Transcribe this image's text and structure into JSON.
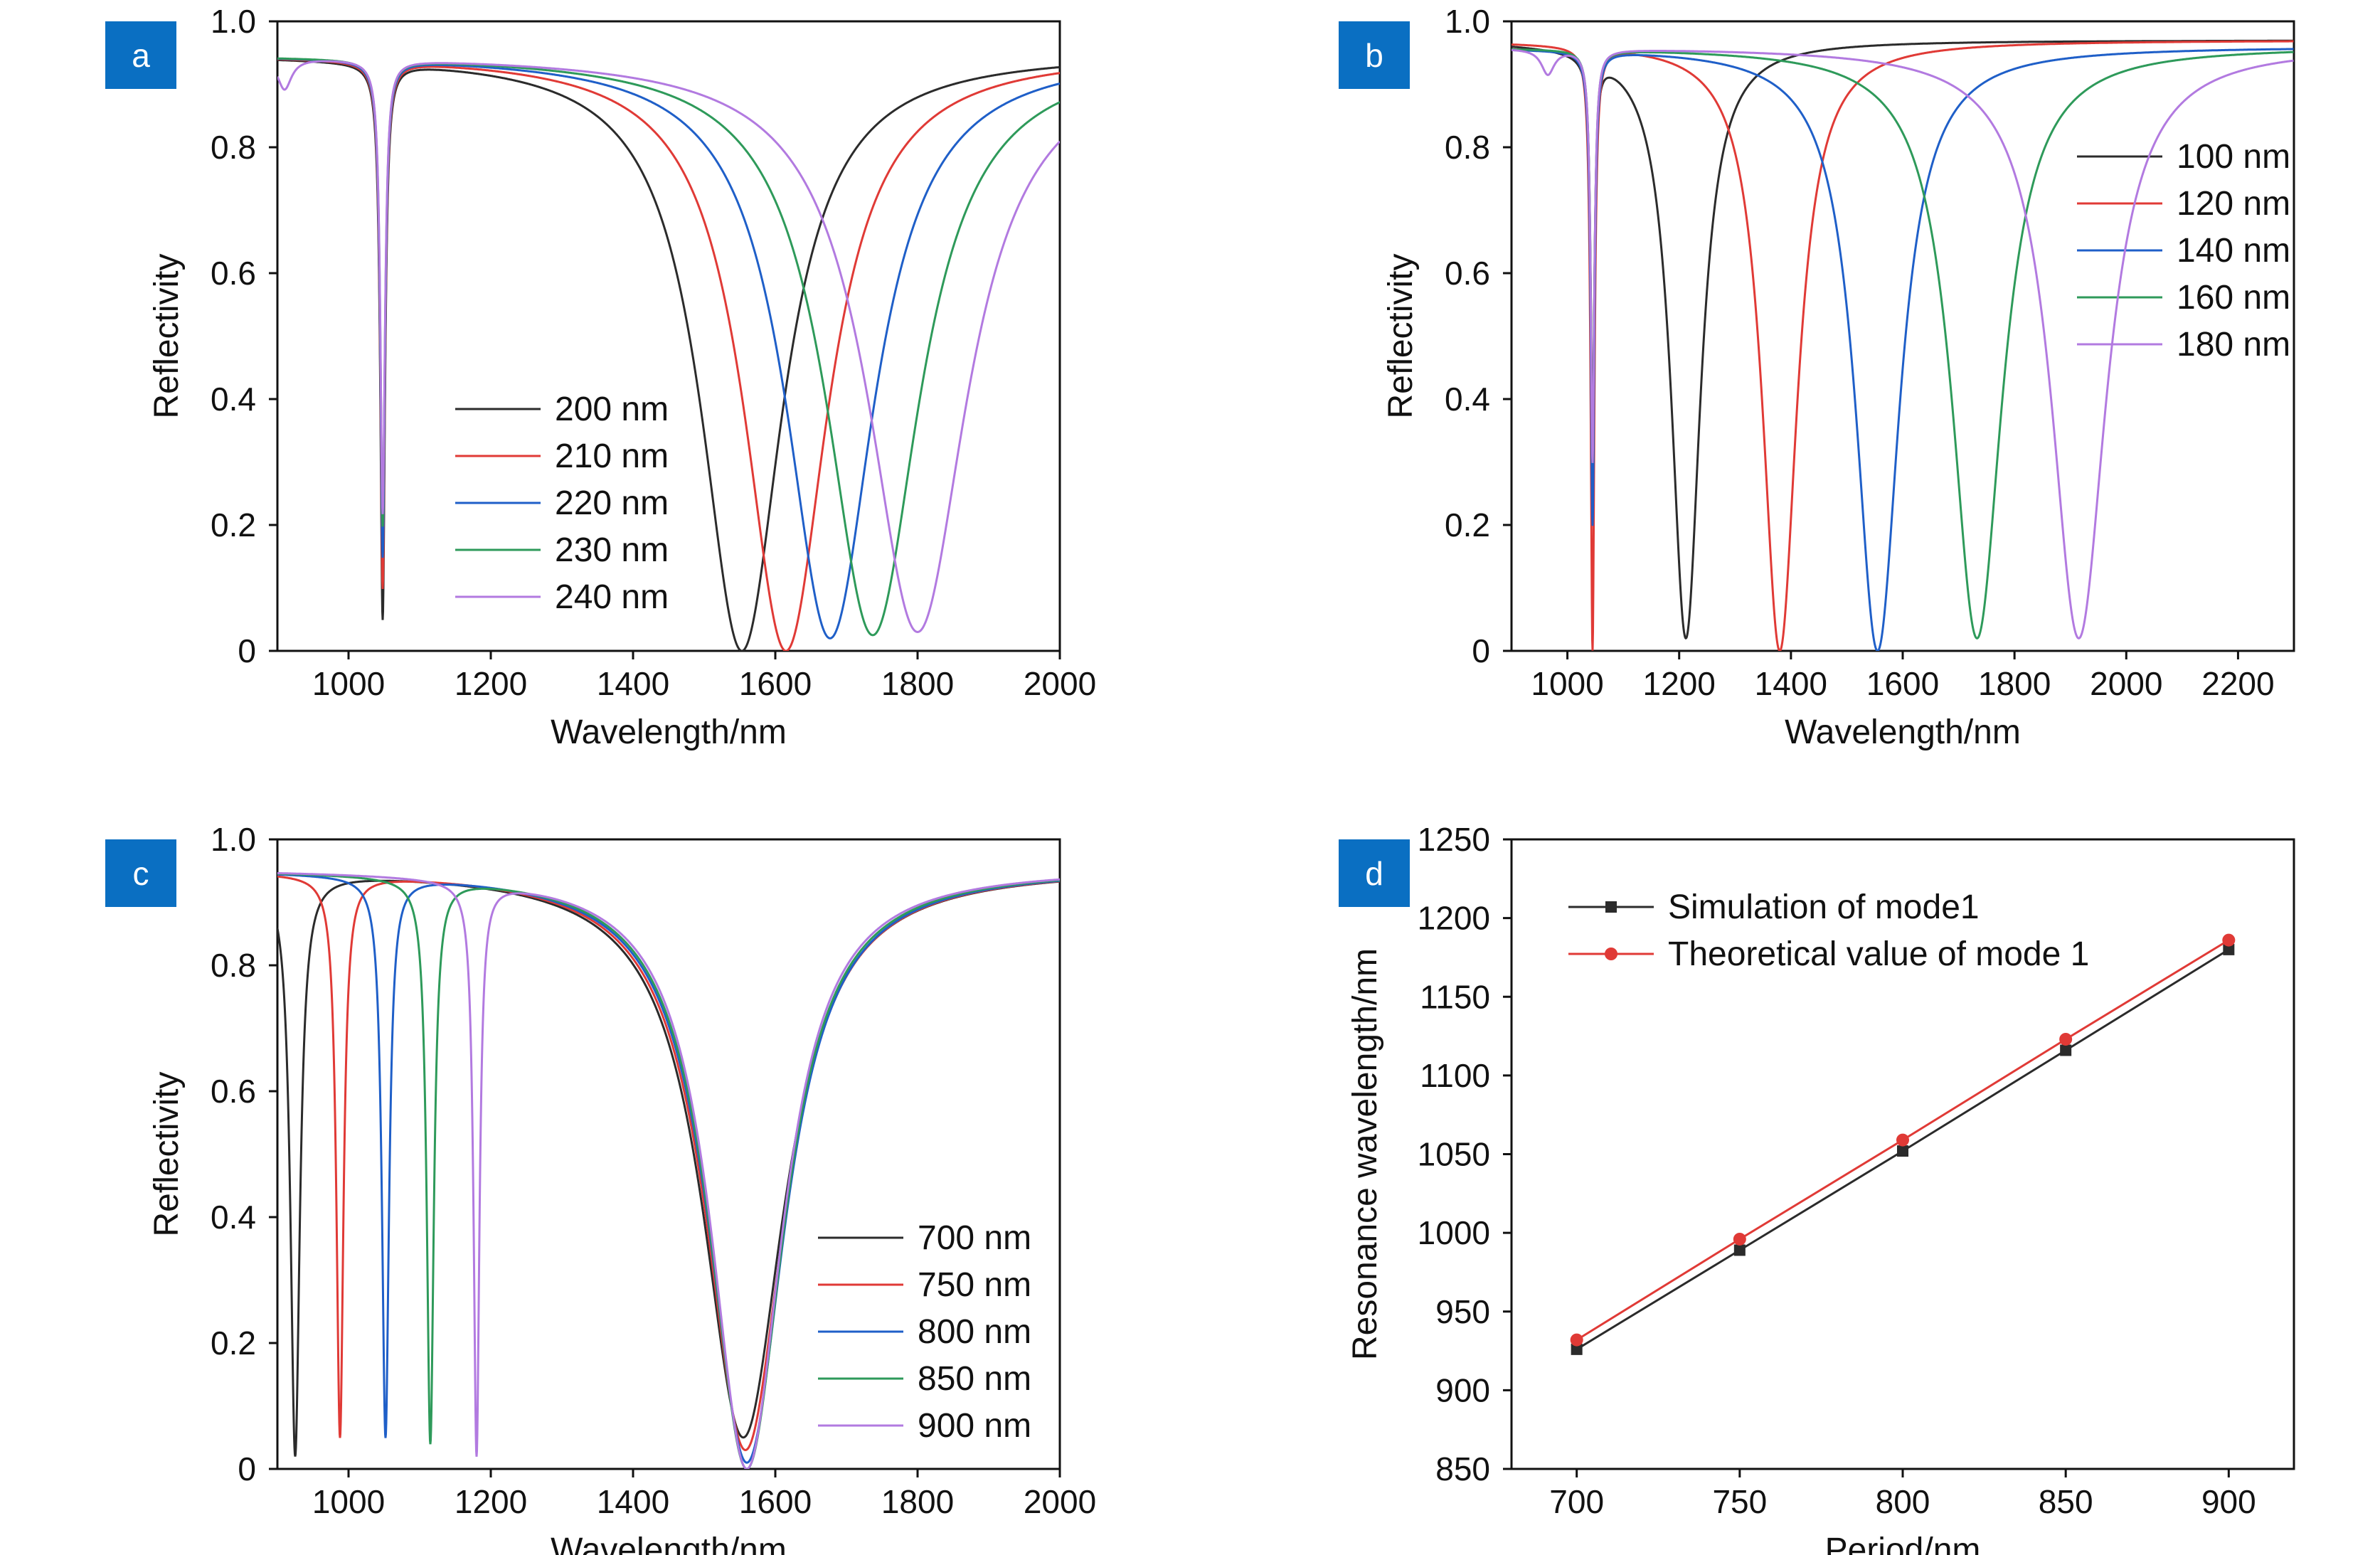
{
  "colors": {
    "black": "#2b2b2b",
    "red": "#e03a36",
    "blue": "#1f5fc8",
    "green": "#2e9a5a",
    "purple": "#b27ae0",
    "badge": "#0a6fc2"
  },
  "chart_data": [
    {
      "badge": "a",
      "type": "line",
      "xlabel": "Wavelength/nm",
      "ylabel": "Reflectivity",
      "xlim": [
        900,
        2000
      ],
      "ylim": [
        0,
        1.0
      ],
      "xticks": [
        1000,
        1200,
        1400,
        1600,
        1800,
        2000
      ],
      "xtick_labels": [
        "1000",
        "1200",
        "1400",
        "1600",
        "1800",
        "2000"
      ],
      "yticks": [
        0,
        0.2,
        0.4,
        0.6,
        0.8,
        1.0
      ],
      "ytick_labels": [
        "0",
        "0.2",
        "0.4",
        "0.6",
        "0.8",
        "1.0"
      ],
      "legend_position": "center",
      "series": [
        {
          "name": "200 nm",
          "color": "black",
          "baseline": 0.95,
          "dips": [
            {
              "x0": 1048,
              "w": 4,
              "min": 0.05
            },
            {
              "x0": 1553,
              "w": 70,
              "min": 0.0
            }
          ]
        },
        {
          "name": "210 nm",
          "color": "red",
          "baseline": 0.95,
          "dips": [
            {
              "x0": 1048,
              "w": 4,
              "min": 0.1
            },
            {
              "x0": 1615,
              "w": 72,
              "min": 0.0
            }
          ]
        },
        {
          "name": "220 nm",
          "color": "blue",
          "baseline": 0.95,
          "dips": [
            {
              "x0": 1048,
              "w": 4,
              "min": 0.15
            },
            {
              "x0": 1677,
              "w": 76,
              "min": 0.02
            }
          ]
        },
        {
          "name": "230 nm",
          "color": "green",
          "baseline": 0.95,
          "dips": [
            {
              "x0": 1048,
              "w": 4,
              "min": 0.2
            },
            {
              "x0": 1737,
              "w": 80,
              "min": 0.025
            }
          ]
        },
        {
          "name": "240 nm",
          "color": "purple",
          "baseline": 0.95,
          "dips": [
            {
              "x0": 910,
              "w": 12,
              "min": 0.9
            },
            {
              "x0": 1048,
              "w": 4,
              "min": 0.22
            },
            {
              "x0": 1800,
              "w": 85,
              "min": 0.03
            }
          ]
        }
      ]
    },
    {
      "badge": "b",
      "type": "line",
      "xlabel": "Wavelength/nm",
      "ylabel": "Reflectivity",
      "xlim": [
        900,
        2300
      ],
      "ylim": [
        0,
        1.0
      ],
      "xticks": [
        1000,
        1200,
        1400,
        1600,
        1800,
        2000,
        2200
      ],
      "xtick_labels": [
        "1000",
        "1200",
        "1400",
        "1600",
        "1800",
        "2000",
        "2200"
      ],
      "yticks": [
        0,
        0.2,
        0.4,
        0.6,
        0.8,
        1.0
      ],
      "ytick_labels": [
        "0",
        "0.2",
        "0.4",
        "0.6",
        "0.8",
        "1.0"
      ],
      "legend_position": "right",
      "series": [
        {
          "name": "100 nm",
          "color": "black",
          "baseline": 0.97,
          "dips": [
            {
              "x0": 1045,
              "w": 4,
              "min": 0.35
            },
            {
              "x0": 1212,
              "w": 32,
              "min": 0.02
            }
          ]
        },
        {
          "name": "120 nm",
          "color": "red",
          "baseline": 0.97,
          "dips": [
            {
              "x0": 1045,
              "w": 4,
              "min": 0.0
            },
            {
              "x0": 1380,
              "w": 38,
              "min": 0.0
            }
          ]
        },
        {
          "name": "140 nm",
          "color": "blue",
          "baseline": 0.96,
          "dips": [
            {
              "x0": 1045,
              "w": 4,
              "min": 0.2
            },
            {
              "x0": 1555,
              "w": 48,
              "min": 0.0
            }
          ]
        },
        {
          "name": "160 nm",
          "color": "green",
          "baseline": 0.96,
          "dips": [
            {
              "x0": 1045,
              "w": 4,
              "min": 0.3
            },
            {
              "x0": 1733,
              "w": 55,
              "min": 0.02
            }
          ]
        },
        {
          "name": "180 nm",
          "color": "purple",
          "baseline": 0.96,
          "dips": [
            {
              "x0": 965,
              "w": 14,
              "min": 0.92
            },
            {
              "x0": 1045,
              "w": 4,
              "min": 0.3
            },
            {
              "x0": 1915,
              "w": 60,
              "min": 0.02
            }
          ]
        }
      ]
    },
    {
      "badge": "c",
      "type": "line",
      "xlabel": "Wavelength/nm",
      "ylabel": "Reflectivity",
      "xlim": [
        900,
        2000
      ],
      "ylim": [
        0,
        1.0
      ],
      "xticks": [
        1000,
        1200,
        1400,
        1600,
        1800,
        2000
      ],
      "xtick_labels": [
        "1000",
        "1200",
        "1400",
        "1600",
        "1800",
        "2000"
      ],
      "yticks": [
        0,
        0.2,
        0.4,
        0.6,
        0.8,
        1.0
      ],
      "ytick_labels": [
        "0",
        "0.2",
        "0.4",
        "0.6",
        "0.8",
        "1.0"
      ],
      "legend_position": "bottom-right",
      "series": [
        {
          "name": "700 nm",
          "color": "black",
          "baseline": 0.955,
          "dips": [
            {
              "x0": 925,
              "w": 8,
              "min": 0.02
            },
            {
              "x0": 1555,
              "w": 70,
              "min": 0.05
            }
          ]
        },
        {
          "name": "750 nm",
          "color": "red",
          "baseline": 0.955,
          "dips": [
            {
              "x0": 988,
              "w": 6,
              "min": 0.05
            },
            {
              "x0": 1558,
              "w": 68,
              "min": 0.03
            }
          ]
        },
        {
          "name": "800 nm",
          "color": "blue",
          "baseline": 0.955,
          "dips": [
            {
              "x0": 1052,
              "w": 6,
              "min": 0.05
            },
            {
              "x0": 1560,
              "w": 66,
              "min": 0.01
            }
          ]
        },
        {
          "name": "850 nm",
          "color": "green",
          "baseline": 0.955,
          "dips": [
            {
              "x0": 1115,
              "w": 6,
              "min": 0.04
            },
            {
              "x0": 1560,
              "w": 64,
              "min": 0.0
            }
          ]
        },
        {
          "name": "900 nm",
          "color": "purple",
          "baseline": 0.955,
          "dips": [
            {
              "x0": 1180,
              "w": 5,
              "min": 0.02
            },
            {
              "x0": 1560,
              "w": 62,
              "min": 0.0
            }
          ]
        }
      ]
    },
    {
      "badge": "d",
      "type": "line",
      "xlabel": "Period/nm",
      "ylabel": "Resonance wavelength/nm",
      "xlim": [
        680,
        920
      ],
      "ylim": [
        850,
        1250
      ],
      "xticks": [
        700,
        750,
        800,
        850,
        900
      ],
      "xtick_labels": [
        "700",
        "750",
        "800",
        "850",
        "900"
      ],
      "yticks": [
        850,
        900,
        950,
        1000,
        1050,
        1100,
        1150,
        1200,
        1250
      ],
      "ytick_labels": [
        "850",
        "900",
        "950",
        "1000",
        "1050",
        "1100",
        "1150",
        "1200",
        "1250"
      ],
      "legend_position": "top-left",
      "series": [
        {
          "name": "Simulation of mode1",
          "color": "black",
          "marker": "square",
          "x": [
            700,
            750,
            800,
            850,
            900
          ],
          "values": [
            926,
            989,
            1052,
            1116,
            1180
          ]
        },
        {
          "name": "Theoretical value of mode 1",
          "color": "red",
          "marker": "circle",
          "x": [
            700,
            750,
            800,
            850,
            900
          ],
          "values": [
            932,
            996,
            1059,
            1123,
            1186
          ]
        }
      ]
    }
  ]
}
